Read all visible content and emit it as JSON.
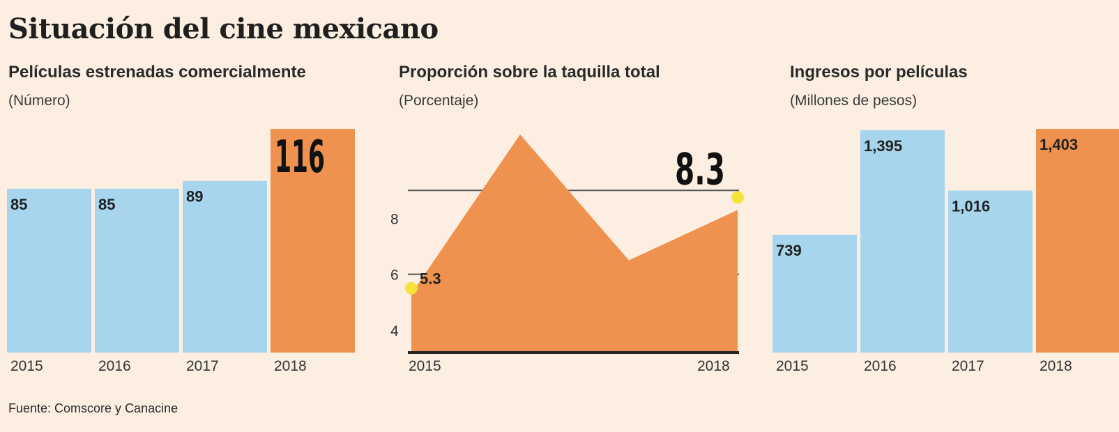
{
  "title": "Situación del cine mexicano",
  "source": "Fuente: Comscore y Canacine",
  "colors": {
    "blue": "#a8d5ee",
    "orange": "#ef914f",
    "highlight": "#f5e23a",
    "background": "#fcefe2"
  },
  "chart_data": [
    {
      "type": "bar",
      "title": "Películas estrenadas comercialmente",
      "subtitle": "(Número)",
      "categories": [
        "2015",
        "2016",
        "2017",
        "2018"
      ],
      "values": [
        85,
        85,
        89,
        116
      ],
      "value_labels": [
        "85",
        "85",
        "89",
        "116"
      ],
      "highlight_index": 3,
      "ylim": [
        0,
        116
      ]
    },
    {
      "type": "area",
      "title": "Proporción sobre la taquilla total",
      "subtitle": "(Porcentaje)",
      "x": [
        "2015",
        "2016",
        "2017",
        "2018"
      ],
      "values": [
        5.3,
        11.0,
        6.5,
        8.3
      ],
      "x_tick_labels": [
        "2015",
        "2018"
      ],
      "y_ticks": [
        4,
        6,
        8
      ],
      "y_tick_labels": [
        "4",
        "6",
        "8"
      ],
      "gridlines": [
        6,
        9
      ],
      "annotations": [
        "5.3",
        "8.3"
      ],
      "ylim": [
        3.2,
        11.2
      ]
    },
    {
      "type": "bar",
      "title": "Ingresos por películas",
      "subtitle": "(Millones de pesos)",
      "categories": [
        "2015",
        "2016",
        "2017",
        "2018"
      ],
      "values": [
        739,
        1395,
        1016,
        1403
      ],
      "value_labels": [
        "739",
        "1,395",
        "1,016",
        "1,403"
      ],
      "highlight_index": 3,
      "ylim": [
        0,
        1403
      ]
    }
  ]
}
